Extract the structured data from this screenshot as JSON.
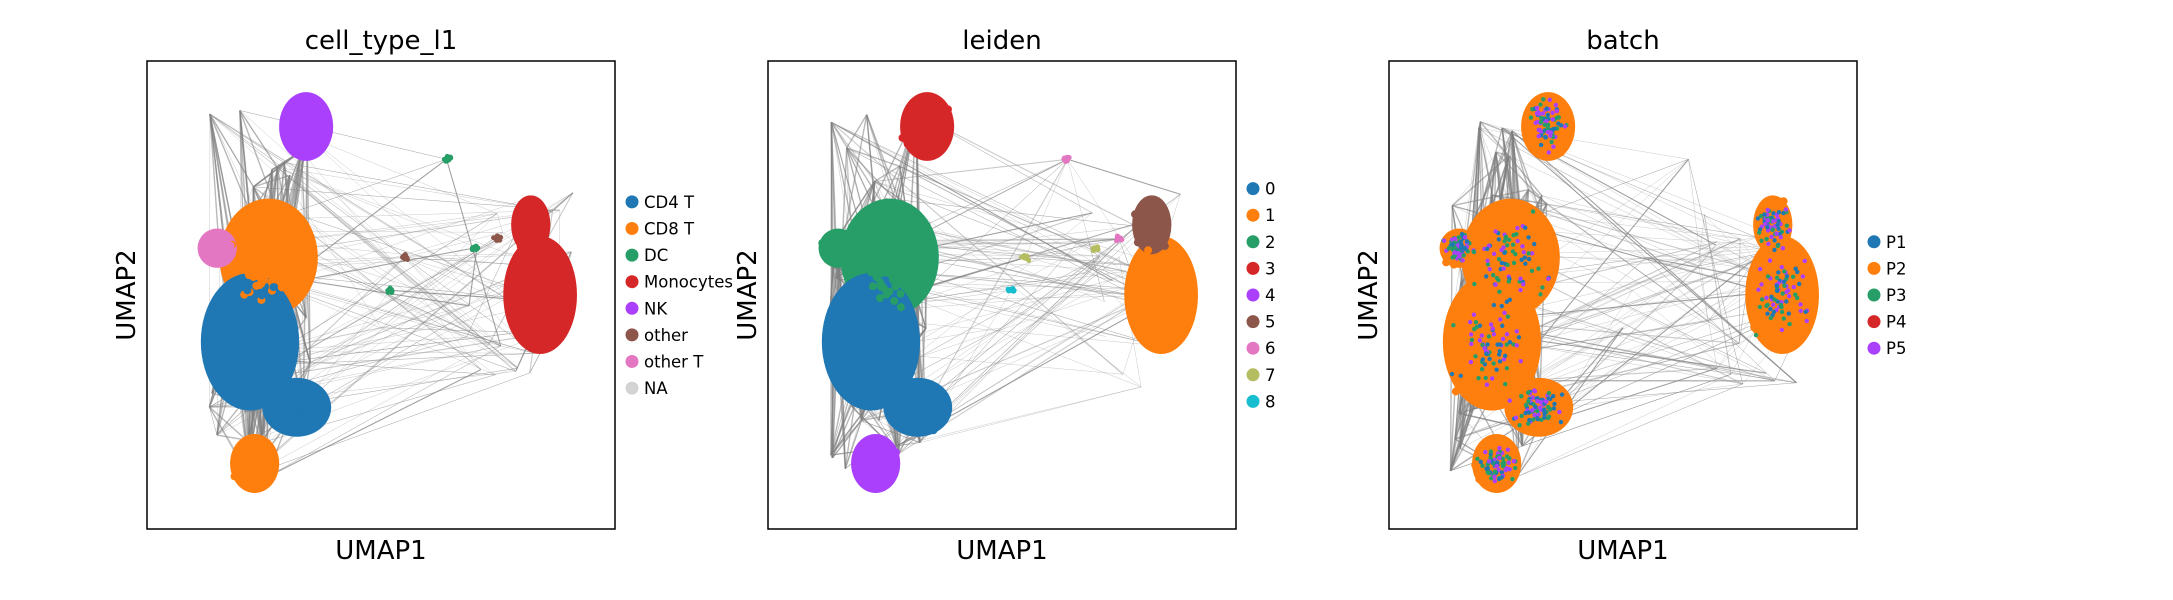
{
  "chart_data": [
    {
      "type": "scatter",
      "title": "cell_type_l1",
      "xlabel": "UMAP1",
      "ylabel": "UMAP2",
      "grid": false,
      "ticks": false,
      "legend_placement": "right",
      "series": [
        {
          "name": "CD4 T",
          "color": "#1f77b4"
        },
        {
          "name": "CD8 T",
          "color": "#ff7f0e"
        },
        {
          "name": "DC",
          "color": "#279e68"
        },
        {
          "name": "Monocytes",
          "color": "#d62728"
        },
        {
          "name": "NK",
          "color": "#aa40fc"
        },
        {
          "name": "other",
          "color": "#8c564b"
        },
        {
          "name": "other T",
          "color": "#e377c2"
        },
        {
          "name": "NA",
          "color": "#d3d3d3"
        }
      ]
    },
    {
      "type": "scatter",
      "title": "leiden",
      "xlabel": "UMAP1",
      "ylabel": "UMAP2",
      "grid": false,
      "ticks": false,
      "legend_placement": "right",
      "series": [
        {
          "name": "0",
          "color": "#1f77b4"
        },
        {
          "name": "1",
          "color": "#ff7f0e"
        },
        {
          "name": "2",
          "color": "#279e68"
        },
        {
          "name": "3",
          "color": "#d62728"
        },
        {
          "name": "4",
          "color": "#aa40fc"
        },
        {
          "name": "5",
          "color": "#8c564b"
        },
        {
          "name": "6",
          "color": "#e377c2"
        },
        {
          "name": "7",
          "color": "#b5bd61"
        },
        {
          "name": "8",
          "color": "#17becf"
        }
      ]
    },
    {
      "type": "scatter",
      "title": "batch",
      "xlabel": "UMAP1",
      "ylabel": "UMAP2",
      "grid": false,
      "ticks": false,
      "legend_placement": "right",
      "series": [
        {
          "name": "P1",
          "color": "#1f77b4"
        },
        {
          "name": "P2",
          "color": "#ff7f0e"
        },
        {
          "name": "P3",
          "color": "#279e68"
        },
        {
          "name": "P4",
          "color": "#d62728"
        },
        {
          "name": "P5",
          "color": "#aa40fc"
        }
      ]
    }
  ]
}
